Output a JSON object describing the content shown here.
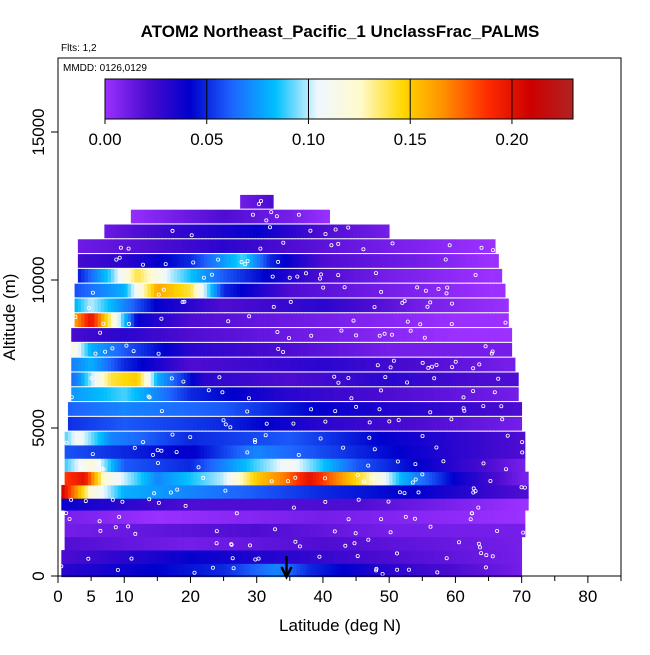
{
  "chart_data": {
    "type": "heatmap",
    "title": "ATOM2 Northeast_Pacific_1 UnclassFrac_PALMS",
    "subtitle_flights": "Flts: 1,2",
    "subtitle_dates": "MMDD: 0126,0129",
    "xlabel": "Latitude (deg N)",
    "ylabel": "Altitude (m)",
    "xlim": [
      0,
      85
    ],
    "ylim": [
      0,
      17500
    ],
    "x_ticks": [
      0,
      5,
      10,
      20,
      30,
      40,
      50,
      60,
      70,
      80
    ],
    "y_ticks": [
      0,
      5000,
      10000,
      15000
    ],
    "colorbar": {
      "range": [
        0,
        0.23
      ],
      "ticks": [
        0,
        0.05,
        0.1,
        0.15,
        0.2
      ],
      "tick_labels": [
        "0.00",
        "0.05",
        "0.10",
        "0.15",
        "0.20"
      ],
      "colors": [
        "#9b30ff",
        "#4b0bd0",
        "#0000cd",
        "#1e66ff",
        "#00bfff",
        "#f0f8ff",
        "#fffacd",
        "#ffd700",
        "#ff8c00",
        "#ff2a00",
        "#cd0000",
        "#b22222"
      ]
    },
    "arrow_latitude": 34.5,
    "layers": [
      {
        "alt": 200,
        "lat0": 0.5,
        "lat1": 70.0,
        "ctrl": [
          [
            0,
            0.03
          ],
          [
            25,
            0.05
          ],
          [
            33,
            0.07
          ],
          [
            38,
            0.05
          ],
          [
            50,
            0.03
          ],
          [
            70,
            0.01
          ]
        ]
      },
      {
        "alt": 650,
        "lat0": 0.5,
        "lat1": 70.0,
        "ctrl": [
          [
            0,
            0.02
          ],
          [
            20,
            0.04
          ],
          [
            35,
            0.03
          ],
          [
            50,
            0.02
          ],
          [
            70,
            0.01
          ]
        ]
      },
      {
        "alt": 1100,
        "lat0": 1.0,
        "lat1": 70.0,
        "ctrl": [
          [
            0,
            0.02
          ],
          [
            20,
            0.01
          ],
          [
            40,
            0.02
          ],
          [
            70,
            0.01
          ]
        ]
      },
      {
        "alt": 1550,
        "lat0": 1.0,
        "lat1": 70.5,
        "ctrl": [
          [
            0,
            0.01
          ],
          [
            30,
            0.02
          ],
          [
            50,
            0.01
          ],
          [
            70,
            0.01
          ]
        ]
      },
      {
        "alt": 2000,
        "lat0": 1.0,
        "lat1": 70.5,
        "ctrl": [
          [
            0,
            0.01
          ],
          [
            15,
            0.0
          ],
          [
            40,
            0.01
          ],
          [
            70,
            0.0
          ]
        ]
      },
      {
        "alt": 2450,
        "lat0": 0.5,
        "lat1": 71.0,
        "ctrl": [
          [
            0,
            0.04
          ],
          [
            20,
            0.02
          ],
          [
            45,
            0.02
          ],
          [
            70,
            0.0
          ]
        ]
      },
      {
        "alt": 2850,
        "lat0": 0.5,
        "lat1": 71.0,
        "ctrl": [
          [
            0,
            0.22
          ],
          [
            2,
            0.18
          ],
          [
            5,
            0.12
          ],
          [
            10,
            0.08
          ],
          [
            20,
            0.07
          ],
          [
            30,
            0.06
          ],
          [
            40,
            0.05
          ],
          [
            55,
            0.04
          ],
          [
            70,
            0.02
          ]
        ]
      },
      {
        "alt": 3300,
        "lat0": 1.0,
        "lat1": 71.0,
        "ctrl": [
          [
            0,
            0.18
          ],
          [
            4,
            0.2
          ],
          [
            7,
            0.12
          ],
          [
            15,
            0.07
          ],
          [
            25,
            0.1
          ],
          [
            30,
            0.15
          ],
          [
            34,
            0.17
          ],
          [
            38,
            0.2
          ],
          [
            42,
            0.17
          ],
          [
            47,
            0.13
          ],
          [
            52,
            0.08
          ],
          [
            60,
            0.04
          ],
          [
            70,
            0.01
          ]
        ]
      },
      {
        "alt": 3750,
        "lat0": 1.0,
        "lat1": 70.5,
        "ctrl": [
          [
            0,
            0.08
          ],
          [
            5,
            0.12
          ],
          [
            10,
            0.06
          ],
          [
            20,
            0.05
          ],
          [
            30,
            0.09
          ],
          [
            35,
            0.11
          ],
          [
            45,
            0.06
          ],
          [
            60,
            0.03
          ],
          [
            70,
            0.01
          ]
        ]
      },
      {
        "alt": 4200,
        "lat0": 1.0,
        "lat1": 70.5,
        "ctrl": [
          [
            0,
            0.06
          ],
          [
            10,
            0.05
          ],
          [
            20,
            0.04
          ],
          [
            30,
            0.07
          ],
          [
            45,
            0.05
          ],
          [
            60,
            0.03
          ],
          [
            70,
            0.02
          ]
        ]
      },
      {
        "alt": 4650,
        "lat0": 1.0,
        "lat1": 70.5,
        "ctrl": [
          [
            0,
            0.08
          ],
          [
            3,
            0.11
          ],
          [
            8,
            0.07
          ],
          [
            20,
            0.05
          ],
          [
            35,
            0.06
          ],
          [
            50,
            0.04
          ],
          [
            70,
            0.02
          ]
        ]
      },
      {
        "alt": 5150,
        "lat0": 1.5,
        "lat1": 70.0,
        "ctrl": [
          [
            0,
            0.05
          ],
          [
            10,
            0.06
          ],
          [
            25,
            0.05
          ],
          [
            40,
            0.03
          ],
          [
            55,
            0.02
          ],
          [
            70,
            0.01
          ]
        ]
      },
      {
        "alt": 5650,
        "lat0": 1.5,
        "lat1": 70.0,
        "ctrl": [
          [
            0,
            0.06
          ],
          [
            10,
            0.07
          ],
          [
            25,
            0.06
          ],
          [
            40,
            0.04
          ],
          [
            55,
            0.03
          ],
          [
            70,
            0.02
          ]
        ]
      },
      {
        "alt": 6150,
        "lat0": 2.0,
        "lat1": 69.5,
        "ctrl": [
          [
            0,
            0.07
          ],
          [
            10,
            0.09
          ],
          [
            20,
            0.05
          ],
          [
            35,
            0.03
          ],
          [
            50,
            0.02
          ],
          [
            70,
            0.01
          ]
        ]
      },
      {
        "alt": 6650,
        "lat0": 2.0,
        "lat1": 69.5,
        "ctrl": [
          [
            0,
            0.05
          ],
          [
            3,
            0.07
          ],
          [
            8,
            0.14
          ],
          [
            12,
            0.15
          ],
          [
            15,
            0.08
          ],
          [
            22,
            0.03
          ],
          [
            35,
            0.02
          ],
          [
            50,
            0.03
          ],
          [
            65,
            0.02
          ]
        ]
      },
      {
        "alt": 7150,
        "lat0": 2.0,
        "lat1": 69.0,
        "ctrl": [
          [
            0,
            0.06
          ],
          [
            5,
            0.08
          ],
          [
            10,
            0.05
          ],
          [
            20,
            0.02
          ],
          [
            40,
            0.03
          ],
          [
            55,
            0.02
          ],
          [
            68,
            0.01
          ]
        ]
      },
      {
        "alt": 7650,
        "lat0": 2.0,
        "lat1": 68.5,
        "ctrl": [
          [
            0,
            0.14
          ],
          [
            2,
            0.12
          ],
          [
            5,
            0.08
          ],
          [
            10,
            0.06
          ],
          [
            20,
            0.03
          ],
          [
            35,
            0.02
          ],
          [
            50,
            0.01
          ]
        ]
      },
      {
        "alt": 8150,
        "lat0": 2.0,
        "lat1": 68.5,
        "ctrl": [
          [
            0,
            0.02
          ],
          [
            10,
            0.03
          ],
          [
            20,
            0.02
          ],
          [
            40,
            0.01
          ],
          [
            60,
            0.0
          ]
        ]
      },
      {
        "alt": 8650,
        "lat0": 2.5,
        "lat1": 68.0,
        "ctrl": [
          [
            0,
            0.12
          ],
          [
            5,
            0.2
          ],
          [
            8,
            0.13
          ],
          [
            12,
            0.04
          ],
          [
            20,
            0.02
          ],
          [
            40,
            0.01
          ],
          [
            60,
            0.0
          ]
        ]
      },
      {
        "alt": 9150,
        "lat0": 2.5,
        "lat1": 68.0,
        "ctrl": [
          [
            0,
            0.06
          ],
          [
            5,
            0.1
          ],
          [
            10,
            0.07
          ],
          [
            15,
            0.04
          ],
          [
            25,
            0.02
          ],
          [
            40,
            0.03
          ],
          [
            55,
            0.01
          ],
          [
            68,
            0.0
          ]
        ]
      },
      {
        "alt": 9650,
        "lat0": 2.5,
        "lat1": 67.5,
        "ctrl": [
          [
            0,
            0.05
          ],
          [
            10,
            0.08
          ],
          [
            15,
            0.16
          ],
          [
            20,
            0.14
          ],
          [
            25,
            0.05
          ],
          [
            35,
            0.02
          ],
          [
            50,
            0.01
          ],
          [
            65,
            0.0
          ]
        ]
      },
      {
        "alt": 10150,
        "lat0": 3.0,
        "lat1": 67.0,
        "ctrl": [
          [
            0,
            0.02
          ],
          [
            8,
            0.09
          ],
          [
            12,
            0.14
          ],
          [
            17,
            0.1
          ],
          [
            25,
            0.06
          ],
          [
            32,
            0.04
          ],
          [
            40,
            0.02
          ],
          [
            50,
            0.01
          ],
          [
            65,
            0.0
          ]
        ]
      },
      {
        "alt": 10650,
        "lat0": 3.0,
        "lat1": 66.5,
        "ctrl": [
          [
            0,
            0.02
          ],
          [
            10,
            0.03
          ],
          [
            20,
            0.05
          ],
          [
            28,
            0.09
          ],
          [
            32,
            0.05
          ],
          [
            40,
            0.02
          ],
          [
            55,
            0.01
          ],
          [
            65,
            0.0
          ]
        ]
      },
      {
        "alt": 11150,
        "lat0": 3.0,
        "lat1": 66.0,
        "ctrl": [
          [
            0,
            0.01
          ],
          [
            15,
            0.02
          ],
          [
            25,
            0.03
          ],
          [
            35,
            0.02
          ],
          [
            50,
            0.01
          ],
          [
            65,
            0.0
          ]
        ]
      },
      {
        "alt": 11650,
        "lat0": 7.0,
        "lat1": 50.0,
        "ctrl": [
          [
            5,
            0.01
          ],
          [
            20,
            0.03
          ],
          [
            30,
            0.04
          ],
          [
            40,
            0.02
          ],
          [
            50,
            0.01
          ]
        ]
      },
      {
        "alt": 12150,
        "lat0": 11.0,
        "lat1": 41.0,
        "ctrl": [
          [
            10,
            0.0
          ],
          [
            25,
            0.02
          ],
          [
            35,
            0.01
          ],
          [
            41,
            0.0
          ]
        ]
      },
      {
        "alt": 12650,
        "lat0": 27.5,
        "lat1": 32.5,
        "ctrl": [
          [
            27,
            0.01
          ],
          [
            32,
            0.02
          ]
        ]
      }
    ],
    "sample_seed": 7
  }
}
